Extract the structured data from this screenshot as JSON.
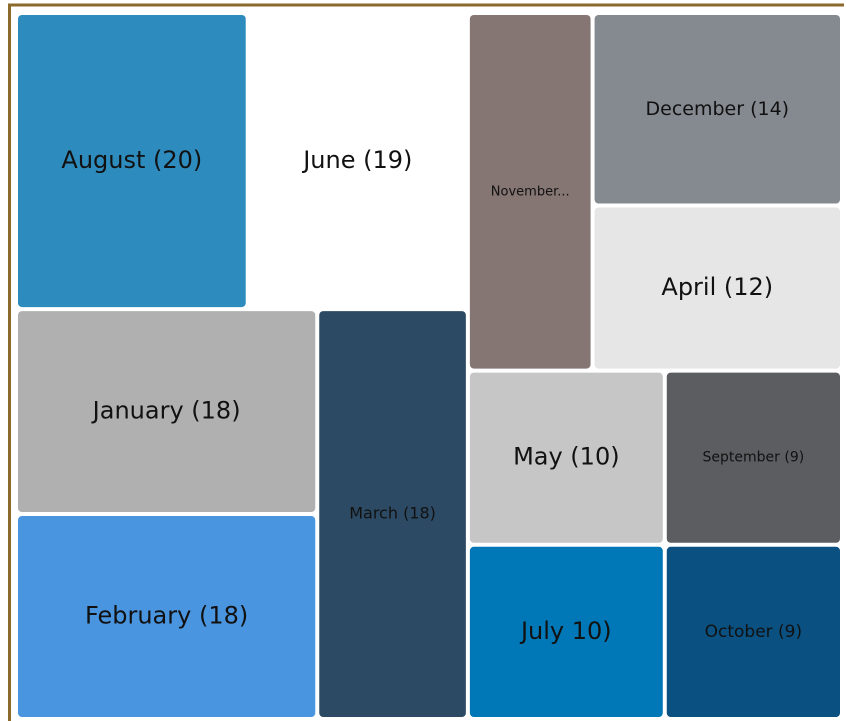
{
  "chart_data": {
    "type": "treemap",
    "labels": [
      "August (20)",
      "June (19)",
      "January (18)",
      "February (18)",
      "March (18)",
      "November...",
      "December (14)",
      "April (12)",
      "May (10)",
      "September (9)",
      "July 10)",
      "October (9)"
    ],
    "values": [
      20,
      19,
      18,
      18,
      18,
      13,
      14,
      12,
      10,
      9,
      10,
      9
    ],
    "colors": [
      "#2e8bbd",
      "#ffffff",
      "#b0b0b0",
      "#4a95df",
      "#2c4a63",
      "#857673",
      "#858990",
      "#e6e6e6",
      "#c6c6c6",
      "#5c5d61",
      "#0077b6",
      "#0a5182"
    ]
  }
}
